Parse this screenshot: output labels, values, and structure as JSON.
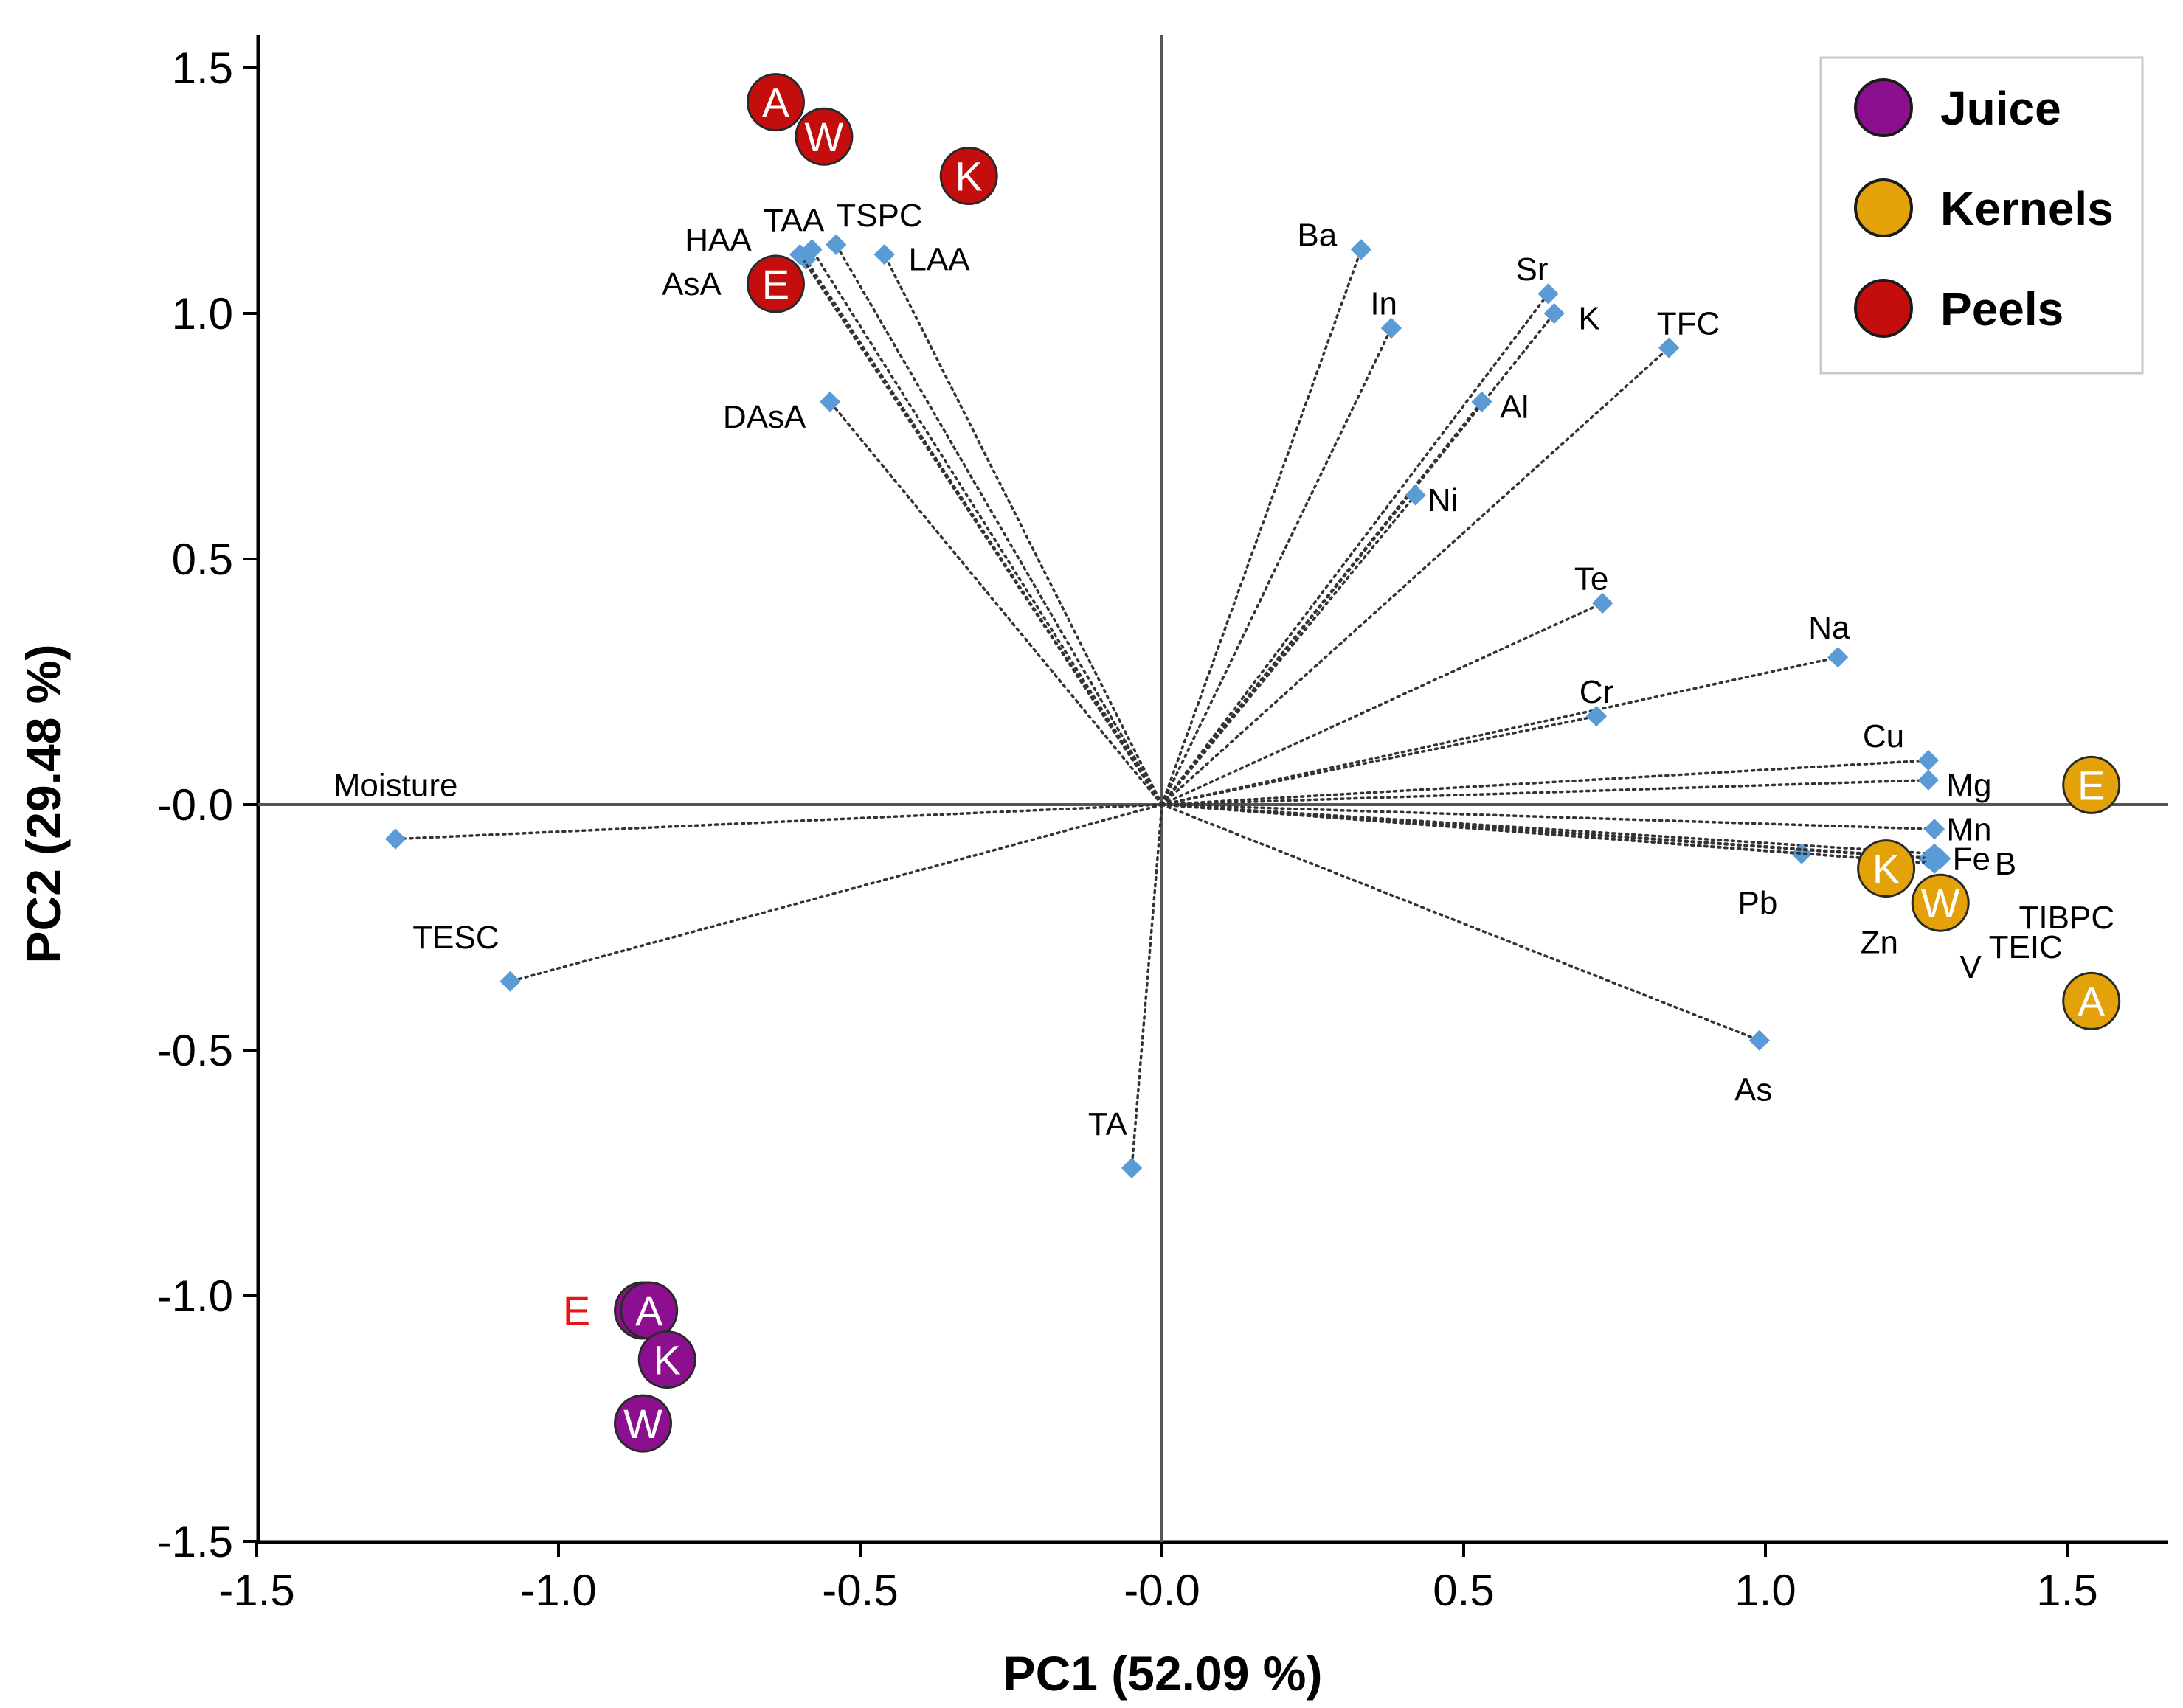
{
  "chart_data": {
    "type": "scatter",
    "subtype": "pca-biplot",
    "xlabel": "PC1 (52.09 %)",
    "ylabel": "PC2 (29.48 %)",
    "xlim": [
      -1.5,
      1.67
    ],
    "ylim": [
      -1.5,
      1.65
    ],
    "x_ticks": [
      -1.5,
      -1.0,
      -0.5,
      0.0,
      0.5,
      1.0,
      1.5
    ],
    "x_tick_labels": [
      "-1.5",
      "-1.0",
      "-0.5",
      "-0.0",
      "0.5",
      "1.0",
      "1.5"
    ],
    "y_ticks": [
      1.5,
      1.0,
      0.5,
      0.0,
      -0.5,
      -1.0,
      -1.5
    ],
    "y_tick_labels": [
      "1.5",
      "1.0",
      "0.5",
      "-0.0",
      "-0.5",
      "-1.0",
      "-1.5"
    ],
    "legend_position": "top-right",
    "groups": [
      {
        "name": "Juice",
        "color": "#8b0f8e"
      },
      {
        "name": "Kernels",
        "color": "#e3a20a"
      },
      {
        "name": "Peels",
        "color": "#c40d0d"
      }
    ],
    "loadings": [
      {
        "label": "Moisture",
        "x": -1.27,
        "y": -0.07,
        "anchor": "middle",
        "lx": 0.0,
        "ly": 0.11
      },
      {
        "label": "TESC",
        "x": -1.08,
        "y": -0.36,
        "anchor": "middle",
        "lx": -0.09,
        "ly": 0.09
      },
      {
        "label": "TA",
        "x": -0.05,
        "y": -0.74,
        "anchor": "middle",
        "lx": -0.04,
        "ly": 0.09
      },
      {
        "label": "DAsA",
        "x": -0.55,
        "y": 0.82,
        "anchor": "end",
        "lx": -0.04,
        "ly": -0.03
      },
      {
        "label": "AsA",
        "x": -0.59,
        "y": 1.11,
        "anchor": "end",
        "lx": -0.14,
        "ly": -0.05
      },
      {
        "label": "HAA",
        "x": -0.6,
        "y": 1.12,
        "anchor": "end",
        "lx": -0.08,
        "ly": 0.03
      },
      {
        "label": "TAA",
        "x": -0.58,
        "y": 1.13,
        "anchor": "middle",
        "lx": -0.03,
        "ly": 0.06
      },
      {
        "label": "TSPC",
        "x": -0.54,
        "y": 1.14,
        "anchor": "start",
        "lx": 0.0,
        "ly": 0.06
      },
      {
        "label": "LAA",
        "x": -0.46,
        "y": 1.12,
        "anchor": "start",
        "lx": 0.04,
        "ly": -0.01
      },
      {
        "label": "Ba",
        "x": 0.33,
        "y": 1.13,
        "anchor": "end",
        "lx": -0.04,
        "ly": 0.03
      },
      {
        "label": "In",
        "x": 0.38,
        "y": 0.97,
        "anchor": "end",
        "lx": 0.01,
        "ly": 0.05
      },
      {
        "label": "Sr",
        "x": 0.64,
        "y": 1.04,
        "anchor": "end",
        "lx": 0.0,
        "ly": 0.05
      },
      {
        "label": "K",
        "x": 0.65,
        "y": 1.0,
        "anchor": "start",
        "lx": 0.04,
        "ly": -0.01
      },
      {
        "label": "TFC",
        "x": 0.84,
        "y": 0.93,
        "anchor": "start",
        "lx": -0.02,
        "ly": 0.05
      },
      {
        "label": "Al",
        "x": 0.53,
        "y": 0.82,
        "anchor": "start",
        "lx": 0.03,
        "ly": -0.01
      },
      {
        "label": "Ni",
        "x": 0.42,
        "y": 0.63,
        "anchor": "start",
        "lx": 0.02,
        "ly": -0.01
      },
      {
        "label": "Te",
        "x": 0.73,
        "y": 0.41,
        "anchor": "end",
        "lx": 0.01,
        "ly": 0.05
      },
      {
        "label": "Na",
        "x": 1.12,
        "y": 0.3,
        "anchor": "end",
        "lx": 0.02,
        "ly": 0.06
      },
      {
        "label": "Cr",
        "x": 0.72,
        "y": 0.18,
        "anchor": "middle",
        "lx": 0.0,
        "ly": 0.05
      },
      {
        "label": "Cu",
        "x": 1.27,
        "y": 0.09,
        "anchor": "end",
        "lx": -0.04,
        "ly": 0.05
      },
      {
        "label": "Mg",
        "x": 1.27,
        "y": 0.05,
        "anchor": "start",
        "lx": 0.03,
        "ly": -0.01
      },
      {
        "label": "Mn",
        "x": 1.28,
        "y": -0.05,
        "anchor": "start",
        "lx": 0.02,
        "ly": 0.0
      },
      {
        "label": "Fe",
        "x": 1.28,
        "y": -0.1,
        "anchor": "start",
        "lx": 0.03,
        "ly": -0.01
      },
      {
        "label": "B",
        "x": 1.29,
        "y": -0.11,
        "anchor": "start",
        "lx": 0.09,
        "ly": -0.01
      },
      {
        "label": "Pb",
        "x": 1.06,
        "y": -0.1,
        "anchor": "end",
        "lx": -0.04,
        "ly": -0.1
      },
      {
        "label": "Zn",
        "x": 1.27,
        "y": -0.11,
        "anchor": "end",
        "lx": -0.05,
        "ly": -0.17
      },
      {
        "label": "V",
        "x": 1.28,
        "y": -0.12,
        "anchor": "middle",
        "lx": 0.06,
        "ly": -0.21
      },
      {
        "label": "TEIC",
        "x": 1.28,
        "y": -0.12,
        "anchor": "start",
        "lx": 0.09,
        "ly": -0.17
      },
      {
        "label": "TIBPC",
        "x": 1.28,
        "y": -0.11,
        "anchor": "start",
        "lx": 0.14,
        "ly": -0.12
      },
      {
        "label": "As",
        "x": 0.99,
        "y": -0.48,
        "anchor": "middle",
        "lx": -0.01,
        "ly": -0.1
      }
    ],
    "scores": [
      {
        "group": "Peels",
        "label": "A",
        "x": -0.64,
        "y": 1.43
      },
      {
        "group": "Peels",
        "label": "W",
        "x": -0.56,
        "y": 1.36
      },
      {
        "group": "Peels",
        "label": "K",
        "x": -0.32,
        "y": 1.28
      },
      {
        "group": "Peels",
        "label": "E",
        "x": -0.64,
        "y": 1.06
      },
      {
        "group": "Kernels",
        "label": "E",
        "x": 1.54,
        "y": 0.04
      },
      {
        "group": "Kernels",
        "label": "K",
        "x": 1.2,
        "y": -0.13
      },
      {
        "group": "Kernels",
        "label": "W",
        "x": 1.29,
        "y": -0.2
      },
      {
        "group": "Kernels",
        "label": "A",
        "x": 1.54,
        "y": -0.4
      },
      {
        "group": "Juice",
        "label": "E",
        "x": -0.86,
        "y": -1.03,
        "outside_label": true
      },
      {
        "group": "Juice",
        "label": "A",
        "x": -0.85,
        "y": -1.03
      },
      {
        "group": "Juice",
        "label": "K",
        "x": -0.82,
        "y": -1.13
      },
      {
        "group": "Juice",
        "label": "W",
        "x": -0.86,
        "y": -1.26
      }
    ]
  }
}
